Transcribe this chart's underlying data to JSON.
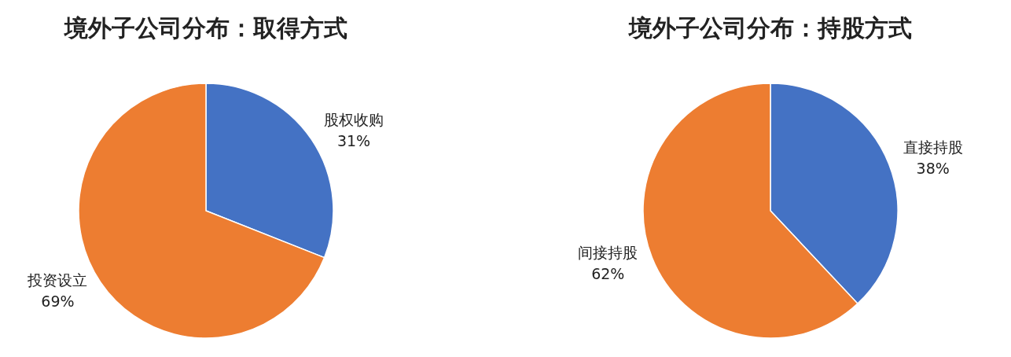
{
  "chart_data": [
    {
      "type": "pie",
      "title": "境外子公司分布：取得方式",
      "categories": [
        "股权收购",
        "投资设立"
      ],
      "values": [
        31,
        69
      ],
      "colors": [
        "#4472c4",
        "#ed7d31"
      ],
      "value_labels": [
        "31%",
        "69%"
      ]
    },
    {
      "type": "pie",
      "title": "境外子公司分布：持股方式",
      "categories": [
        "直接持股",
        "间接持股"
      ],
      "values": [
        38,
        62
      ],
      "colors": [
        "#4472c4",
        "#ed7d31"
      ],
      "value_labels": [
        "38%",
        "62%"
      ]
    }
  ]
}
